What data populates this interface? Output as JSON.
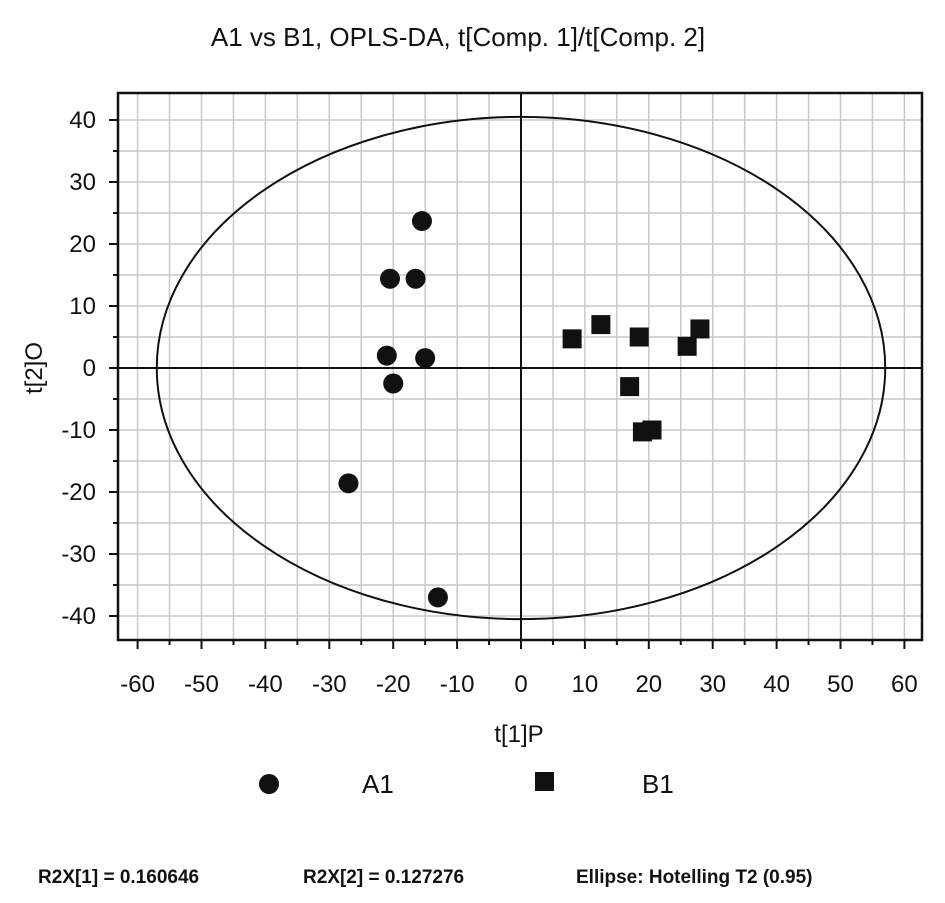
{
  "chart_data": {
    "type": "scatter",
    "title": "A1 vs B1, OPLS-DA, t[Comp. 1]/t[Comp. 2]",
    "xlabel": "t[1]P",
    "ylabel": "t[2]O",
    "xlim": [
      -63,
      63
    ],
    "ylim": [
      -44,
      44
    ],
    "x_ticks": [
      -60,
      -50,
      -40,
      -30,
      -20,
      -10,
      0,
      10,
      20,
      30,
      40,
      50,
      60
    ],
    "y_ticks": [
      -40,
      -30,
      -20,
      -10,
      0,
      10,
      20,
      30,
      40
    ],
    "grid": true,
    "ellipse": {
      "cx": 0,
      "cy": 0,
      "rx": 57,
      "ry": 40.5
    },
    "series": [
      {
        "name": "A1",
        "marker": "circle",
        "points": [
          {
            "x": -15.5,
            "y": 23.7
          },
          {
            "x": -20.5,
            "y": 14.4
          },
          {
            "x": -16.5,
            "y": 14.4
          },
          {
            "x": -21.0,
            "y": 2.0
          },
          {
            "x": -15.0,
            "y": 1.6
          },
          {
            "x": -20.0,
            "y": -2.5
          },
          {
            "x": -27.0,
            "y": -18.6
          },
          {
            "x": -13.0,
            "y": -37.0
          }
        ]
      },
      {
        "name": "B1",
        "marker": "square",
        "points": [
          {
            "x": 8.0,
            "y": 4.7
          },
          {
            "x": 12.5,
            "y": 7.0
          },
          {
            "x": 18.5,
            "y": 5.0
          },
          {
            "x": 28.0,
            "y": 6.3
          },
          {
            "x": 26.0,
            "y": 3.5
          },
          {
            "x": 17.0,
            "y": -3.0
          },
          {
            "x": 19.0,
            "y": -10.3
          },
          {
            "x": 20.5,
            "y": -10.0
          }
        ]
      }
    ],
    "legend": {
      "position": "bottom"
    },
    "footer": {
      "r2x1": "R2X[1] = 0.160646",
      "r2x2": "R2X[2] = 0.127276",
      "ellipse_label": "Ellipse: Hotelling T2 (0.95)"
    },
    "colors": {
      "marker": "#111111",
      "grid": "#c8c8c8",
      "frame": "#111111"
    }
  }
}
